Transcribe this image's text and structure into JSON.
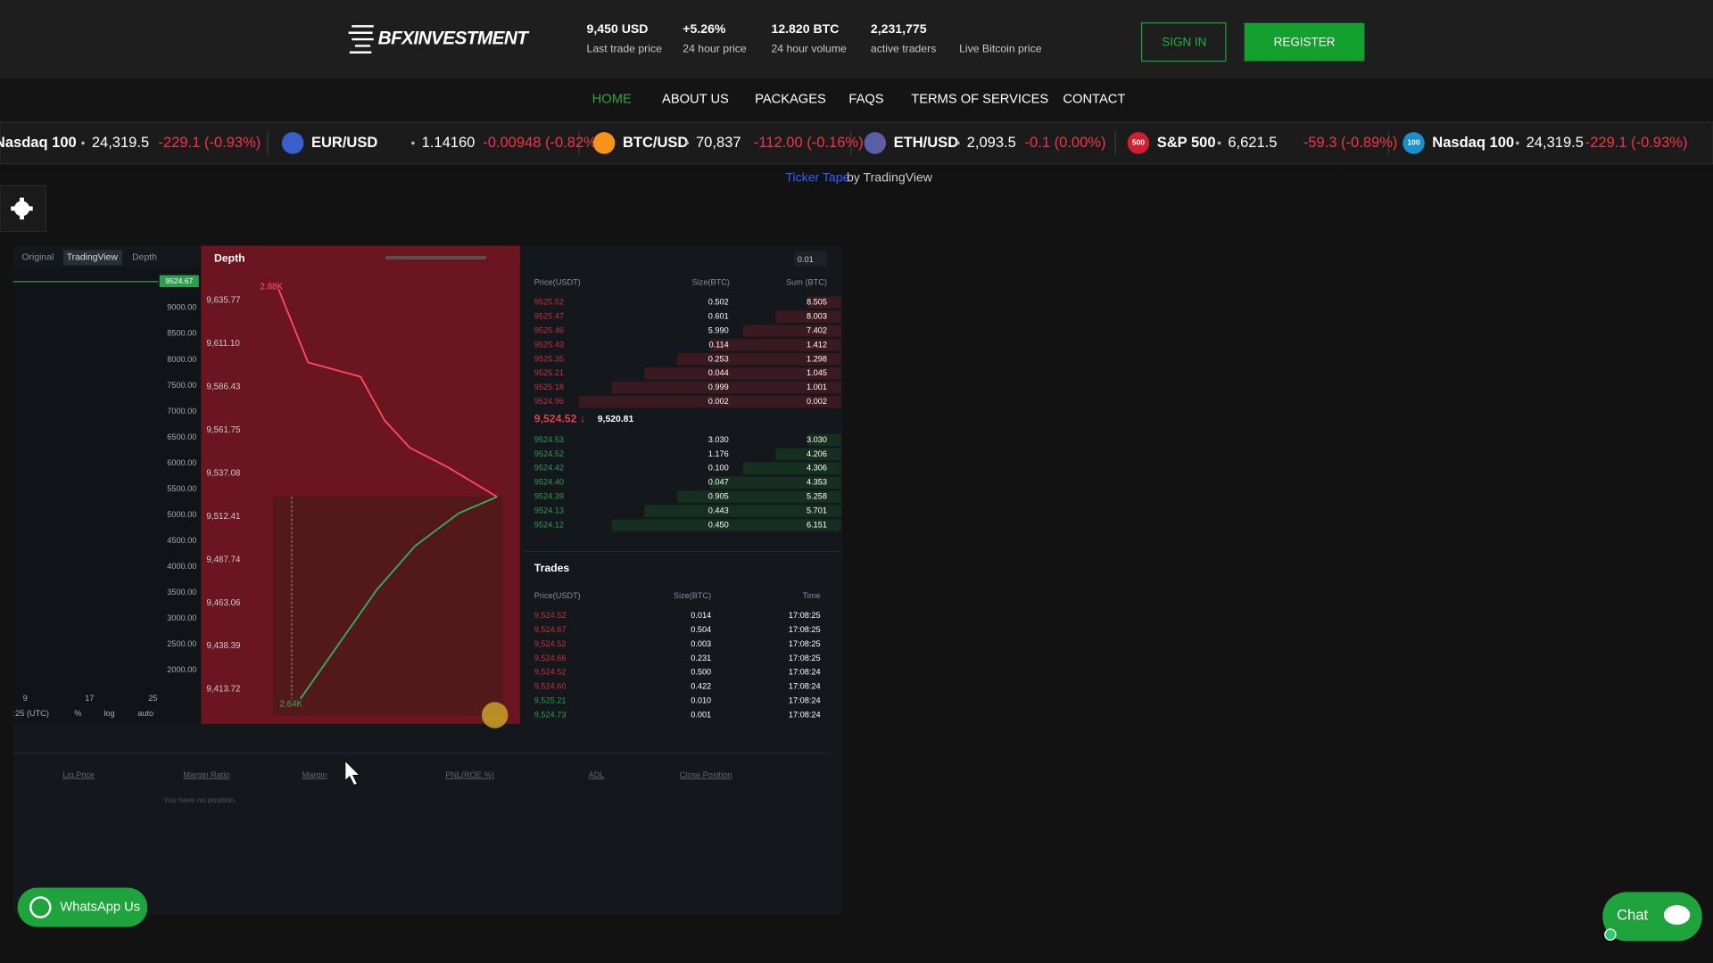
{
  "header": {
    "logo": "BFXINVESTMENT",
    "stats": [
      {
        "value": "9,450 USD",
        "label": "Last trade price"
      },
      {
        "value": "+5.26%",
        "label": "24 hour price"
      },
      {
        "value": "12.820 BTC",
        "label": "24 hour volume"
      },
      {
        "value": "2,231,775",
        "label": "active traders"
      },
      {
        "label": "Live Bitcoin price"
      }
    ],
    "sign_in": "SIGN IN",
    "register": "REGISTER"
  },
  "nav": [
    "HOME",
    "ABOUT US",
    "PACKAGES",
    "FAQS",
    "TERMS OF SERVICES",
    "CONTACT"
  ],
  "ticker": [
    {
      "symbol": "Nasdaq 100",
      "price": "24,319.5",
      "change": "-229.1 (-0.93%)"
    },
    {
      "symbol": "EUR/USD",
      "price": "1.14160",
      "change": "-0.00948 (-0.82%)",
      "icon": "#3a5fcd"
    },
    {
      "symbol": "BTC/USD",
      "price": "70,837",
      "change": "-112.00 (-0.16%)",
      "icon": "#f7931a"
    },
    {
      "symbol": "ETH/USD",
      "price": "2,093.5",
      "change": "-0.1 (0.00%)",
      "icon": "#5b5ea6"
    },
    {
      "symbol": "S&P 500",
      "price": "6,621.5",
      "change": "-59.3 (-0.89%)",
      "icon": "#d0202f",
      "badge": "500"
    },
    {
      "symbol": "Nasdaq 100",
      "price": "24,319.5",
      "change": "-229.1 (-0.93%)",
      "icon": "#1a8fc9",
      "badge": "100"
    }
  ],
  "ticker_credit": {
    "link": "Ticker Tape",
    "text": "by TradingView"
  },
  "trading": {
    "tabs": [
      "Original",
      "TradingView",
      "Depth"
    ],
    "last_badge": "9524.67",
    "price_axis": [
      "9000.00",
      "8500.00",
      "8000.00",
      "7500.00",
      "7000.00",
      "6500.00",
      "6000.00",
      "5500.00",
      "5000.00",
      "4500.00",
      "4000.00",
      "3500.00",
      "3000.00",
      "2500.00",
      "2000.00"
    ],
    "time_axis": [
      "9",
      "17",
      "25"
    ],
    "toolbar": [
      ":25 (UTC)",
      "%",
      "log",
      "auto"
    ],
    "depth": {
      "title": "Depth",
      "axis": [
        "9,635.77",
        "9,611.10",
        "9,586.43",
        "9,561.75",
        "9,537.08",
        "9,512.41",
        "9,487.74",
        "9,463.06",
        "9,438.39",
        "9,413.72"
      ],
      "ask_label": "2.88K",
      "bid_label": "2.64K"
    },
    "order_book": {
      "precision": "0.01",
      "headers": [
        "Price(USDT)",
        "Size(BTC)",
        "Sum (BTC)"
      ],
      "asks": [
        [
          "9525.52",
          "0.502",
          "8.505"
        ],
        [
          "9525.47",
          "0.601",
          "8.003"
        ],
        [
          "9525.46",
          "5.990",
          "7.402"
        ],
        [
          "9525.43",
          "0.114",
          "1.412"
        ],
        [
          "9525.35",
          "0.253",
          "1.298"
        ],
        [
          "9525.21",
          "0.044",
          "1.045"
        ],
        [
          "9525.18",
          "0.999",
          "1.001"
        ],
        [
          "9524.96",
          "0.002",
          "0.002"
        ]
      ],
      "last": "9,524.52 ↓",
      "mark": "9,520.81",
      "bids": [
        [
          "9524.53",
          "3.030",
          "3.030"
        ],
        [
          "9524.52",
          "1.176",
          "4.206"
        ],
        [
          "9524.42",
          "0.100",
          "4.306"
        ],
        [
          "9524.40",
          "0.047",
          "4.353"
        ],
        [
          "9524.39",
          "0.905",
          "5.258"
        ],
        [
          "9524.13",
          "0.443",
          "5.701"
        ],
        [
          "9524.12",
          "0.450",
          "6.151"
        ]
      ]
    },
    "trades": {
      "title": "Trades",
      "headers": [
        "Price(USDT)",
        "Size(BTC)",
        "Time"
      ],
      "rows": [
        {
          "price": "9,524.52",
          "size": "0.014",
          "time": "17:08:25",
          "color": "#c8323c"
        },
        {
          "price": "9,524.67",
          "size": "0.504",
          "time": "17:08:25",
          "color": "#c8323c"
        },
        {
          "price": "9,524.52",
          "size": "0.003",
          "time": "17:08:25",
          "color": "#c8323c"
        },
        {
          "price": "9,524.66",
          "size": "0.231",
          "time": "17:08:25",
          "color": "#c8323c"
        },
        {
          "price": "9,524.52",
          "size": "0.500",
          "time": "17:08:24",
          "color": "#c8323c"
        },
        {
          "price": "9,524.60",
          "size": "0.422",
          "time": "17:08:24",
          "color": "#c8323c"
        },
        {
          "price": "9,525.21",
          "size": "0.010",
          "time": "17:08:24",
          "color": "#2f9e4f"
        },
        {
          "price": "9,524.73",
          "size": "0.001",
          "time": "17:08:24",
          "color": "#2f9e4f"
        }
      ]
    },
    "positions": {
      "headers": [
        "Liq.Price",
        "Margin Ratio",
        "Margin",
        "PNL(ROE %)",
        "ADL",
        "Close Position"
      ],
      "empty": "You have no position."
    }
  },
  "whatsapp": "WhatsApp Us",
  "chat": "Chat"
}
